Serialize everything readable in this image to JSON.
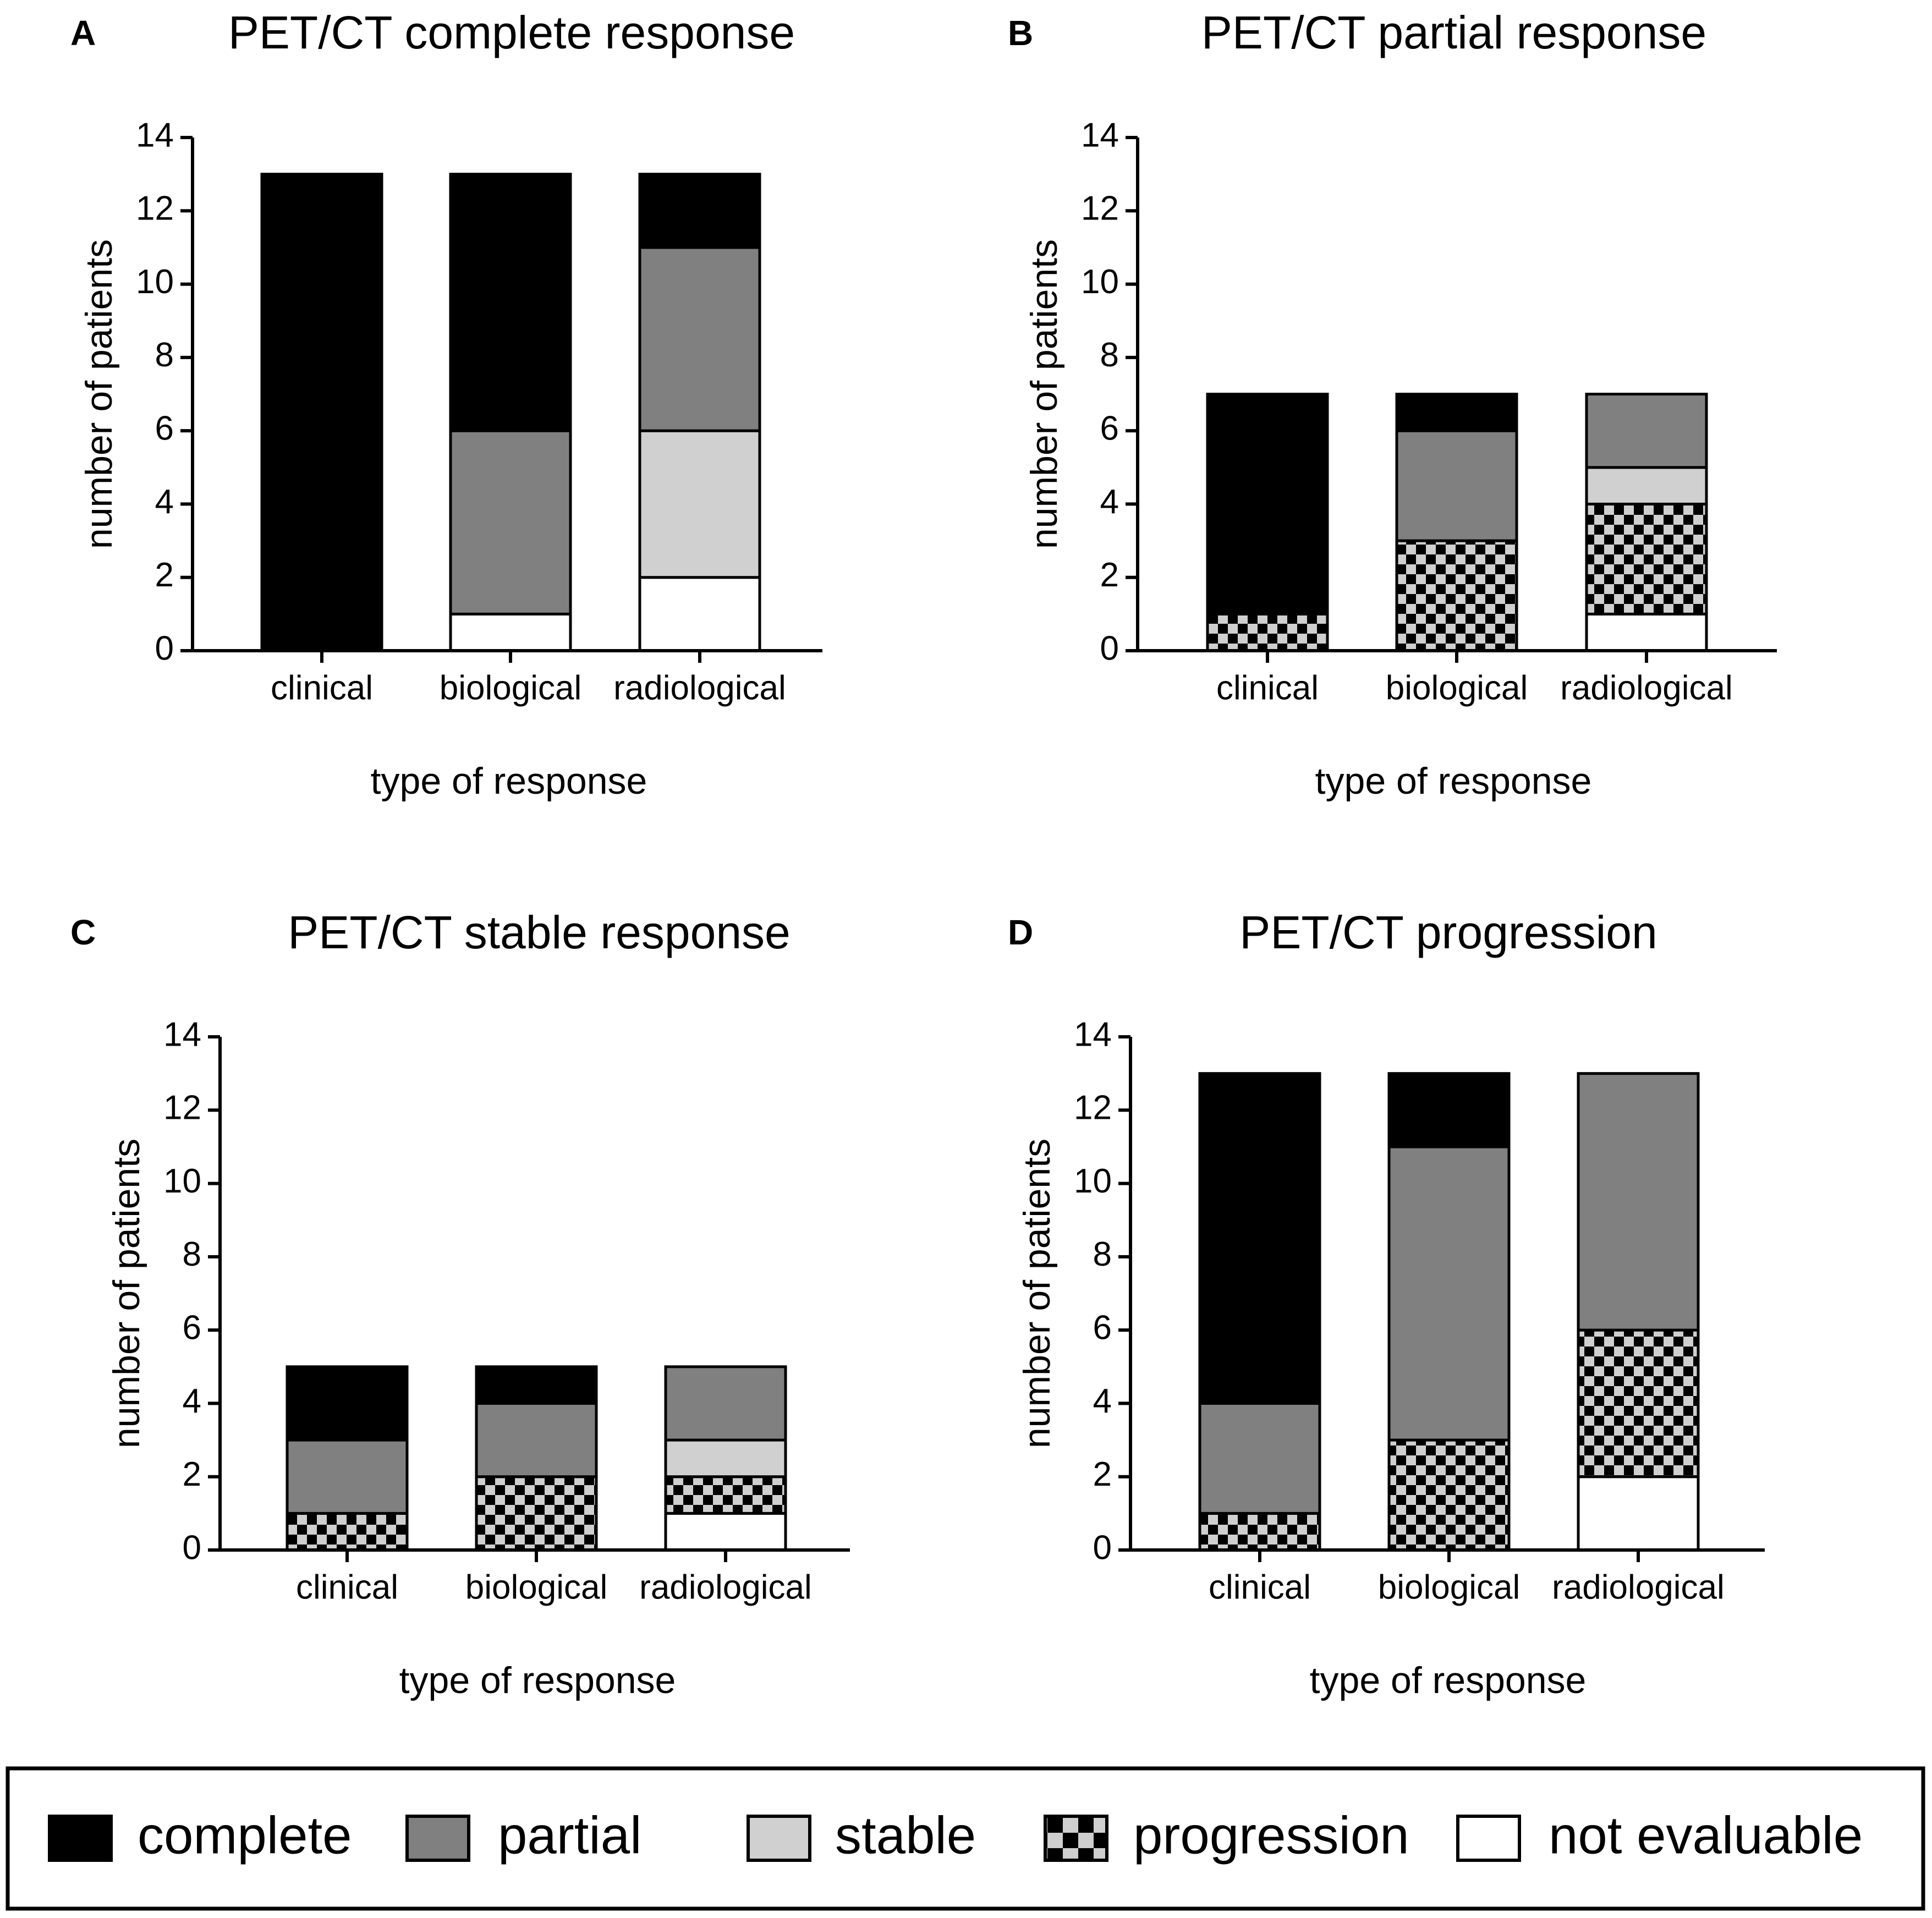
{
  "figure": {
    "legend": [
      {
        "key": "complete",
        "label": "complete",
        "fill": "#000000"
      },
      {
        "key": "partial",
        "label": "partial",
        "fill": "#808080"
      },
      {
        "key": "stable",
        "label": "stable",
        "fill": "#d0d0d0"
      },
      {
        "key": "progression",
        "label": "progression",
        "fill": "checker"
      },
      {
        "key": "not_evaluable",
        "label": "not evaluable",
        "fill": "#ffffff"
      }
    ],
    "colors": {
      "complete": "#000000",
      "partial": "#808080",
      "stable": "#d0d0d0",
      "progression_dark": "#000000",
      "progression_light": "#cfcfcf",
      "not_evaluable": "#ffffff",
      "axis": "#000000"
    }
  },
  "chart_data": [
    {
      "panel": "A",
      "type": "bar",
      "stacked": true,
      "title": "PET/CT complete response",
      "xlabel": "type of response",
      "ylabel": "number of patients",
      "ylim": [
        0,
        14
      ],
      "yticks": [
        0,
        2,
        4,
        6,
        8,
        10,
        12,
        14
      ],
      "categories": [
        "clinical",
        "biological",
        "radiological"
      ],
      "series": [
        {
          "name": "not evaluable",
          "key": "not_evaluable",
          "values": [
            0,
            1,
            2
          ]
        },
        {
          "name": "progression",
          "key": "progression",
          "values": [
            0,
            0,
            0
          ]
        },
        {
          "name": "stable",
          "key": "stable",
          "values": [
            0,
            0,
            4
          ]
        },
        {
          "name": "partial",
          "key": "partial",
          "values": [
            0,
            5,
            5
          ]
        },
        {
          "name": "complete",
          "key": "complete",
          "values": [
            13,
            7,
            2
          ]
        }
      ]
    },
    {
      "panel": "B",
      "type": "bar",
      "stacked": true,
      "title": "PET/CT partial response",
      "xlabel": "type of response",
      "ylabel": "number of patients",
      "ylim": [
        0,
        14
      ],
      "yticks": [
        0,
        2,
        4,
        6,
        8,
        10,
        12,
        14
      ],
      "categories": [
        "clinical",
        "biological",
        "radiological"
      ],
      "series": [
        {
          "name": "not evaluable",
          "key": "not_evaluable",
          "values": [
            0,
            0,
            1
          ]
        },
        {
          "name": "progression",
          "key": "progression",
          "values": [
            1,
            3,
            3
          ]
        },
        {
          "name": "stable",
          "key": "stable",
          "values": [
            0,
            0,
            1
          ]
        },
        {
          "name": "partial",
          "key": "partial",
          "values": [
            0,
            3,
            2
          ]
        },
        {
          "name": "complete",
          "key": "complete",
          "values": [
            6,
            1,
            0
          ]
        }
      ]
    },
    {
      "panel": "C",
      "type": "bar",
      "stacked": true,
      "title": "PET/CT stable response",
      "xlabel": "type of response",
      "ylabel": "number of patients",
      "ylim": [
        0,
        14
      ],
      "yticks": [
        0,
        2,
        4,
        6,
        8,
        10,
        12,
        14
      ],
      "categories": [
        "clinical",
        "biological",
        "radiological"
      ],
      "series": [
        {
          "name": "not evaluable",
          "key": "not_evaluable",
          "values": [
            0,
            0,
            1
          ]
        },
        {
          "name": "progression",
          "key": "progression",
          "values": [
            1,
            2,
            1
          ]
        },
        {
          "name": "stable",
          "key": "stable",
          "values": [
            0,
            0,
            1
          ]
        },
        {
          "name": "partial",
          "key": "partial",
          "values": [
            2,
            2,
            2
          ]
        },
        {
          "name": "complete",
          "key": "complete",
          "values": [
            2,
            1,
            0
          ]
        }
      ]
    },
    {
      "panel": "D",
      "type": "bar",
      "stacked": true,
      "title": "PET/CT progression",
      "xlabel": "type of response",
      "ylabel": "number of patients",
      "ylim": [
        0,
        14
      ],
      "yticks": [
        0,
        2,
        4,
        6,
        8,
        10,
        12,
        14
      ],
      "categories": [
        "clinical",
        "biological",
        "radiological"
      ],
      "series": [
        {
          "name": "not evaluable",
          "key": "not_evaluable",
          "values": [
            0,
            0,
            2
          ]
        },
        {
          "name": "progression",
          "key": "progression",
          "values": [
            1,
            3,
            4
          ]
        },
        {
          "name": "stable",
          "key": "stable",
          "values": [
            0,
            0,
            0
          ]
        },
        {
          "name": "partial",
          "key": "partial",
          "values": [
            3,
            8,
            7
          ]
        },
        {
          "name": "complete",
          "key": "complete",
          "values": [
            9,
            2,
            0
          ]
        }
      ]
    }
  ]
}
